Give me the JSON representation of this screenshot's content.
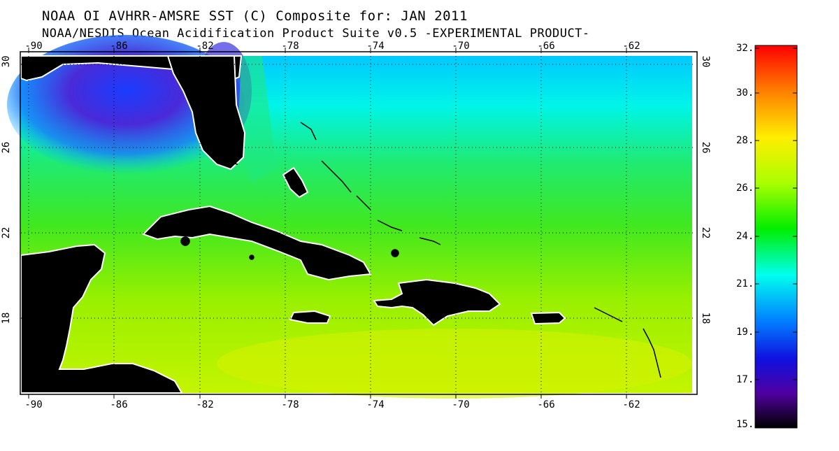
{
  "title": "NOAA OI AVHRR-AMSRE SST (C) Composite for: JAN 2011",
  "subtitle": "NOAA/NESDIS Ocean Acidification Product Suite  v0.5 -EXPERIMENTAL PRODUCT-",
  "map": {
    "longitude_ticks": [
      "-90",
      "-86",
      "-82",
      "-78",
      "-74",
      "-70",
      "-66",
      "-62"
    ],
    "latitude_ticks": [
      "30",
      "26",
      "22",
      "18"
    ],
    "grid": true,
    "extent": {
      "lon_min": -90.4,
      "lon_max": -60.4,
      "lat_min": 15.8,
      "lat_max": 30.3
    },
    "land_color": "#000000",
    "coast_color": "#ffffff"
  },
  "colorbar": {
    "labels": [
      "32.",
      "30.",
      "28.",
      "26.",
      "24.",
      "21.",
      "19.",
      "17.",
      "15."
    ],
    "colors": [
      "#ff0000",
      "#ff8000",
      "#ffee00",
      "#aaff00",
      "#00ee00",
      "#00ffee",
      "#0080ff",
      "#1010e0",
      "#5000a0",
      "#000000"
    ]
  }
}
